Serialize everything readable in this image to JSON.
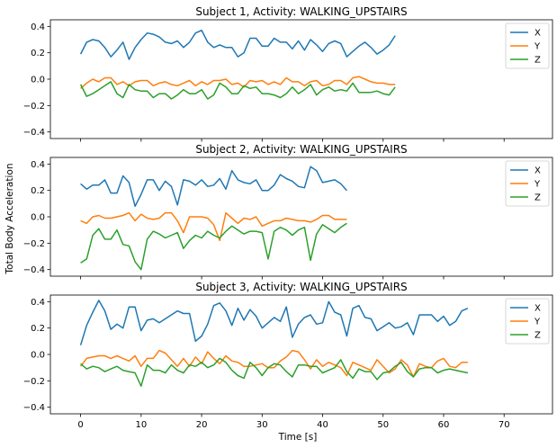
{
  "figure": {
    "ylabel": "Total Body Acceleration",
    "xlabel": "Time [s]",
    "legend_labels": [
      "X",
      "Y",
      "Z"
    ],
    "colors": {
      "X": "#1f77b4",
      "Y": "#ff7f0e",
      "Z": "#2ca02c"
    }
  },
  "chart_data": [
    {
      "type": "line",
      "title": "Subject 1, Activity: WALKING_UPSTAIRS",
      "xlim": [
        -5,
        78
      ],
      "ylim": [
        -0.45,
        0.45
      ],
      "yticks": [
        -0.4,
        -0.2,
        0.0,
        0.2,
        0.4
      ],
      "yticklabels": [
        "−0.4",
        "−0.2",
        "0.0",
        "0.2",
        "0.4"
      ],
      "grid": false,
      "legend": "top-right",
      "x_start": 0,
      "series": [
        {
          "name": "X",
          "values": [
            0.19,
            0.28,
            0.3,
            0.29,
            0.24,
            0.17,
            0.22,
            0.28,
            0.15,
            0.24,
            0.3,
            0.35,
            0.34,
            0.32,
            0.28,
            0.27,
            0.29,
            0.24,
            0.28,
            0.35,
            0.37,
            0.28,
            0.24,
            0.26,
            0.24,
            0.24,
            0.17,
            0.2,
            0.31,
            0.31,
            0.25,
            0.25,
            0.31,
            0.28,
            0.28,
            0.23,
            0.29,
            0.22,
            0.3,
            0.26,
            0.21,
            0.27,
            0.29,
            0.27,
            0.17,
            0.21,
            0.25,
            0.28,
            0.24,
            0.19,
            0.22,
            0.26,
            0.33
          ]
        },
        {
          "name": "Y",
          "values": [
            -0.07,
            -0.03,
            0.0,
            -0.02,
            0.01,
            0.01,
            -0.04,
            -0.02,
            -0.05,
            -0.02,
            -0.01,
            -0.01,
            -0.05,
            -0.03,
            -0.02,
            -0.04,
            -0.05,
            -0.03,
            -0.01,
            -0.05,
            -0.02,
            -0.04,
            -0.01,
            -0.01,
            0.0,
            -0.04,
            -0.03,
            -0.06,
            -0.01,
            -0.02,
            -0.01,
            -0.04,
            -0.02,
            -0.04,
            0.01,
            -0.02,
            -0.02,
            -0.05,
            -0.02,
            -0.01,
            -0.05,
            -0.04,
            -0.01,
            -0.01,
            -0.04,
            0.01,
            0.02,
            0.0,
            -0.02,
            -0.03,
            -0.03,
            -0.04,
            -0.04
          ]
        },
        {
          "name": "Z",
          "values": [
            -0.04,
            -0.13,
            -0.11,
            -0.08,
            -0.05,
            -0.02,
            -0.11,
            -0.14,
            -0.04,
            -0.08,
            -0.09,
            -0.09,
            -0.14,
            -0.11,
            -0.11,
            -0.15,
            -0.12,
            -0.08,
            -0.11,
            -0.11,
            -0.08,
            -0.15,
            -0.12,
            -0.03,
            -0.06,
            -0.11,
            -0.11,
            -0.05,
            -0.07,
            -0.06,
            -0.11,
            -0.11,
            -0.12,
            -0.14,
            -0.11,
            -0.06,
            -0.11,
            -0.08,
            -0.04,
            -0.12,
            -0.08,
            -0.06,
            -0.09,
            -0.08,
            -0.09,
            -0.03,
            -0.1,
            -0.1,
            -0.1,
            -0.09,
            -0.11,
            -0.12,
            -0.06
          ]
        }
      ]
    },
    {
      "type": "line",
      "title": "Subject 2, Activity: WALKING_UPSTAIRS",
      "xlim": [
        -5,
        78
      ],
      "ylim": [
        -0.45,
        0.45
      ],
      "yticks": [
        -0.4,
        -0.2,
        0.0,
        0.2,
        0.4
      ],
      "yticklabels": [
        "−0.4",
        "−0.2",
        "0.0",
        "0.2",
        "0.4"
      ],
      "grid": false,
      "legend": "top-right",
      "x_start": 0,
      "series": [
        {
          "name": "X",
          "values": [
            0.25,
            0.21,
            0.24,
            0.24,
            0.28,
            0.18,
            0.18,
            0.31,
            0.26,
            0.08,
            0.17,
            0.28,
            0.28,
            0.2,
            0.27,
            0.23,
            0.09,
            0.28,
            0.27,
            0.24,
            0.28,
            0.23,
            0.24,
            0.29,
            0.21,
            0.35,
            0.28,
            0.26,
            0.25,
            0.28,
            0.2,
            0.2,
            0.24,
            0.32,
            0.29,
            0.27,
            0.23,
            0.22,
            0.38,
            0.35,
            0.26,
            0.27,
            0.28,
            0.25,
            0.2
          ]
        },
        {
          "name": "Y",
          "values": [
            -0.03,
            -0.05,
            0.0,
            0.01,
            -0.01,
            -0.01,
            0.0,
            0.01,
            0.03,
            -0.03,
            0.02,
            -0.01,
            -0.02,
            -0.01,
            0.03,
            0.03,
            -0.03,
            -0.12,
            0.0,
            0.0,
            0.0,
            -0.01,
            -0.06,
            -0.18,
            0.03,
            -0.01,
            -0.05,
            -0.01,
            -0.02,
            0.0,
            -0.07,
            -0.05,
            -0.03,
            -0.03,
            -0.01,
            -0.02,
            -0.03,
            -0.03,
            -0.04,
            -0.02,
            0.01,
            0.01,
            -0.02,
            -0.02,
            -0.02
          ]
        },
        {
          "name": "Z",
          "values": [
            -0.35,
            -0.32,
            -0.14,
            -0.09,
            -0.17,
            -0.17,
            -0.1,
            -0.21,
            -0.22,
            -0.34,
            -0.4,
            -0.17,
            -0.11,
            -0.13,
            -0.16,
            -0.14,
            -0.12,
            -0.24,
            -0.18,
            -0.14,
            -0.16,
            -0.11,
            -0.14,
            -0.16,
            -0.11,
            -0.07,
            -0.1,
            -0.13,
            -0.11,
            -0.11,
            -0.12,
            -0.32,
            -0.11,
            -0.08,
            -0.1,
            -0.14,
            -0.1,
            -0.08,
            -0.33,
            -0.13,
            -0.06,
            -0.09,
            -0.12,
            -0.08,
            -0.05
          ]
        }
      ]
    },
    {
      "type": "line",
      "title": "Subject 3, Activity: WALKING_UPSTAIRS",
      "xlim": [
        -5,
        78
      ],
      "ylim": [
        -0.45,
        0.45
      ],
      "yticks": [
        -0.4,
        -0.2,
        0.0,
        0.2,
        0.4
      ],
      "yticklabels": [
        "−0.4",
        "−0.2",
        "0.0",
        "0.2",
        "0.4"
      ],
      "xticks": [
        0,
        10,
        20,
        30,
        40,
        50,
        60,
        70
      ],
      "xticklabels": [
        "0",
        "10",
        "20",
        "30",
        "40",
        "50",
        "60",
        "70"
      ],
      "grid": false,
      "legend": "top-right",
      "x_start": 0,
      "series": [
        {
          "name": "X",
          "values": [
            0.07,
            0.22,
            0.32,
            0.41,
            0.33,
            0.19,
            0.23,
            0.2,
            0.36,
            0.36,
            0.18,
            0.26,
            0.27,
            0.24,
            0.27,
            0.3,
            0.33,
            0.31,
            0.31,
            0.1,
            0.14,
            0.23,
            0.37,
            0.39,
            0.33,
            0.22,
            0.35,
            0.26,
            0.34,
            0.29,
            0.2,
            0.24,
            0.28,
            0.25,
            0.36,
            0.13,
            0.23,
            0.28,
            0.3,
            0.23,
            0.24,
            0.4,
            0.32,
            0.3,
            0.14,
            0.35,
            0.37,
            0.28,
            0.27,
            0.18,
            0.21,
            0.24,
            0.2,
            0.21,
            0.24,
            0.15,
            0.3,
            0.3,
            0.3,
            0.25,
            0.29,
            0.22,
            0.25,
            0.33,
            0.35
          ]
        },
        {
          "name": "Y",
          "values": [
            -0.09,
            -0.03,
            -0.02,
            -0.01,
            -0.01,
            -0.03,
            -0.01,
            -0.03,
            -0.05,
            -0.01,
            -0.09,
            -0.03,
            -0.03,
            0.03,
            0.01,
            -0.04,
            -0.09,
            -0.03,
            -0.09,
            -0.02,
            -0.07,
            0.02,
            -0.03,
            -0.07,
            -0.01,
            -0.05,
            -0.06,
            -0.09,
            -0.09,
            -0.08,
            -0.07,
            -0.1,
            -0.1,
            -0.05,
            -0.02,
            0.03,
            0.02,
            -0.04,
            -0.11,
            -0.04,
            -0.09,
            -0.06,
            -0.08,
            -0.1,
            -0.16,
            -0.06,
            -0.08,
            -0.1,
            -0.12,
            -0.04,
            -0.09,
            -0.14,
            -0.11,
            -0.04,
            -0.08,
            -0.17,
            -0.07,
            -0.09,
            -0.1,
            -0.05,
            -0.03,
            -0.09,
            -0.1,
            -0.06,
            -0.06
          ]
        },
        {
          "name": "Z",
          "values": [
            -0.07,
            -0.11,
            -0.09,
            -0.1,
            -0.13,
            -0.11,
            -0.09,
            -0.12,
            -0.13,
            -0.14,
            -0.24,
            -0.08,
            -0.12,
            -0.12,
            -0.14,
            -0.08,
            -0.12,
            -0.14,
            -0.08,
            -0.09,
            -0.06,
            -0.1,
            -0.08,
            -0.03,
            -0.06,
            -0.12,
            -0.16,
            -0.18,
            -0.06,
            -0.1,
            -0.16,
            -0.1,
            -0.07,
            -0.08,
            -0.13,
            -0.17,
            -0.08,
            -0.08,
            -0.09,
            -0.09,
            -0.14,
            -0.12,
            -0.1,
            -0.04,
            -0.13,
            -0.18,
            -0.11,
            -0.13,
            -0.13,
            -0.19,
            -0.14,
            -0.13,
            -0.09,
            -0.06,
            -0.13,
            -0.17,
            -0.11,
            -0.1,
            -0.1,
            -0.14,
            -0.12,
            -0.11,
            -0.12,
            -0.13,
            -0.14
          ]
        }
      ]
    }
  ]
}
